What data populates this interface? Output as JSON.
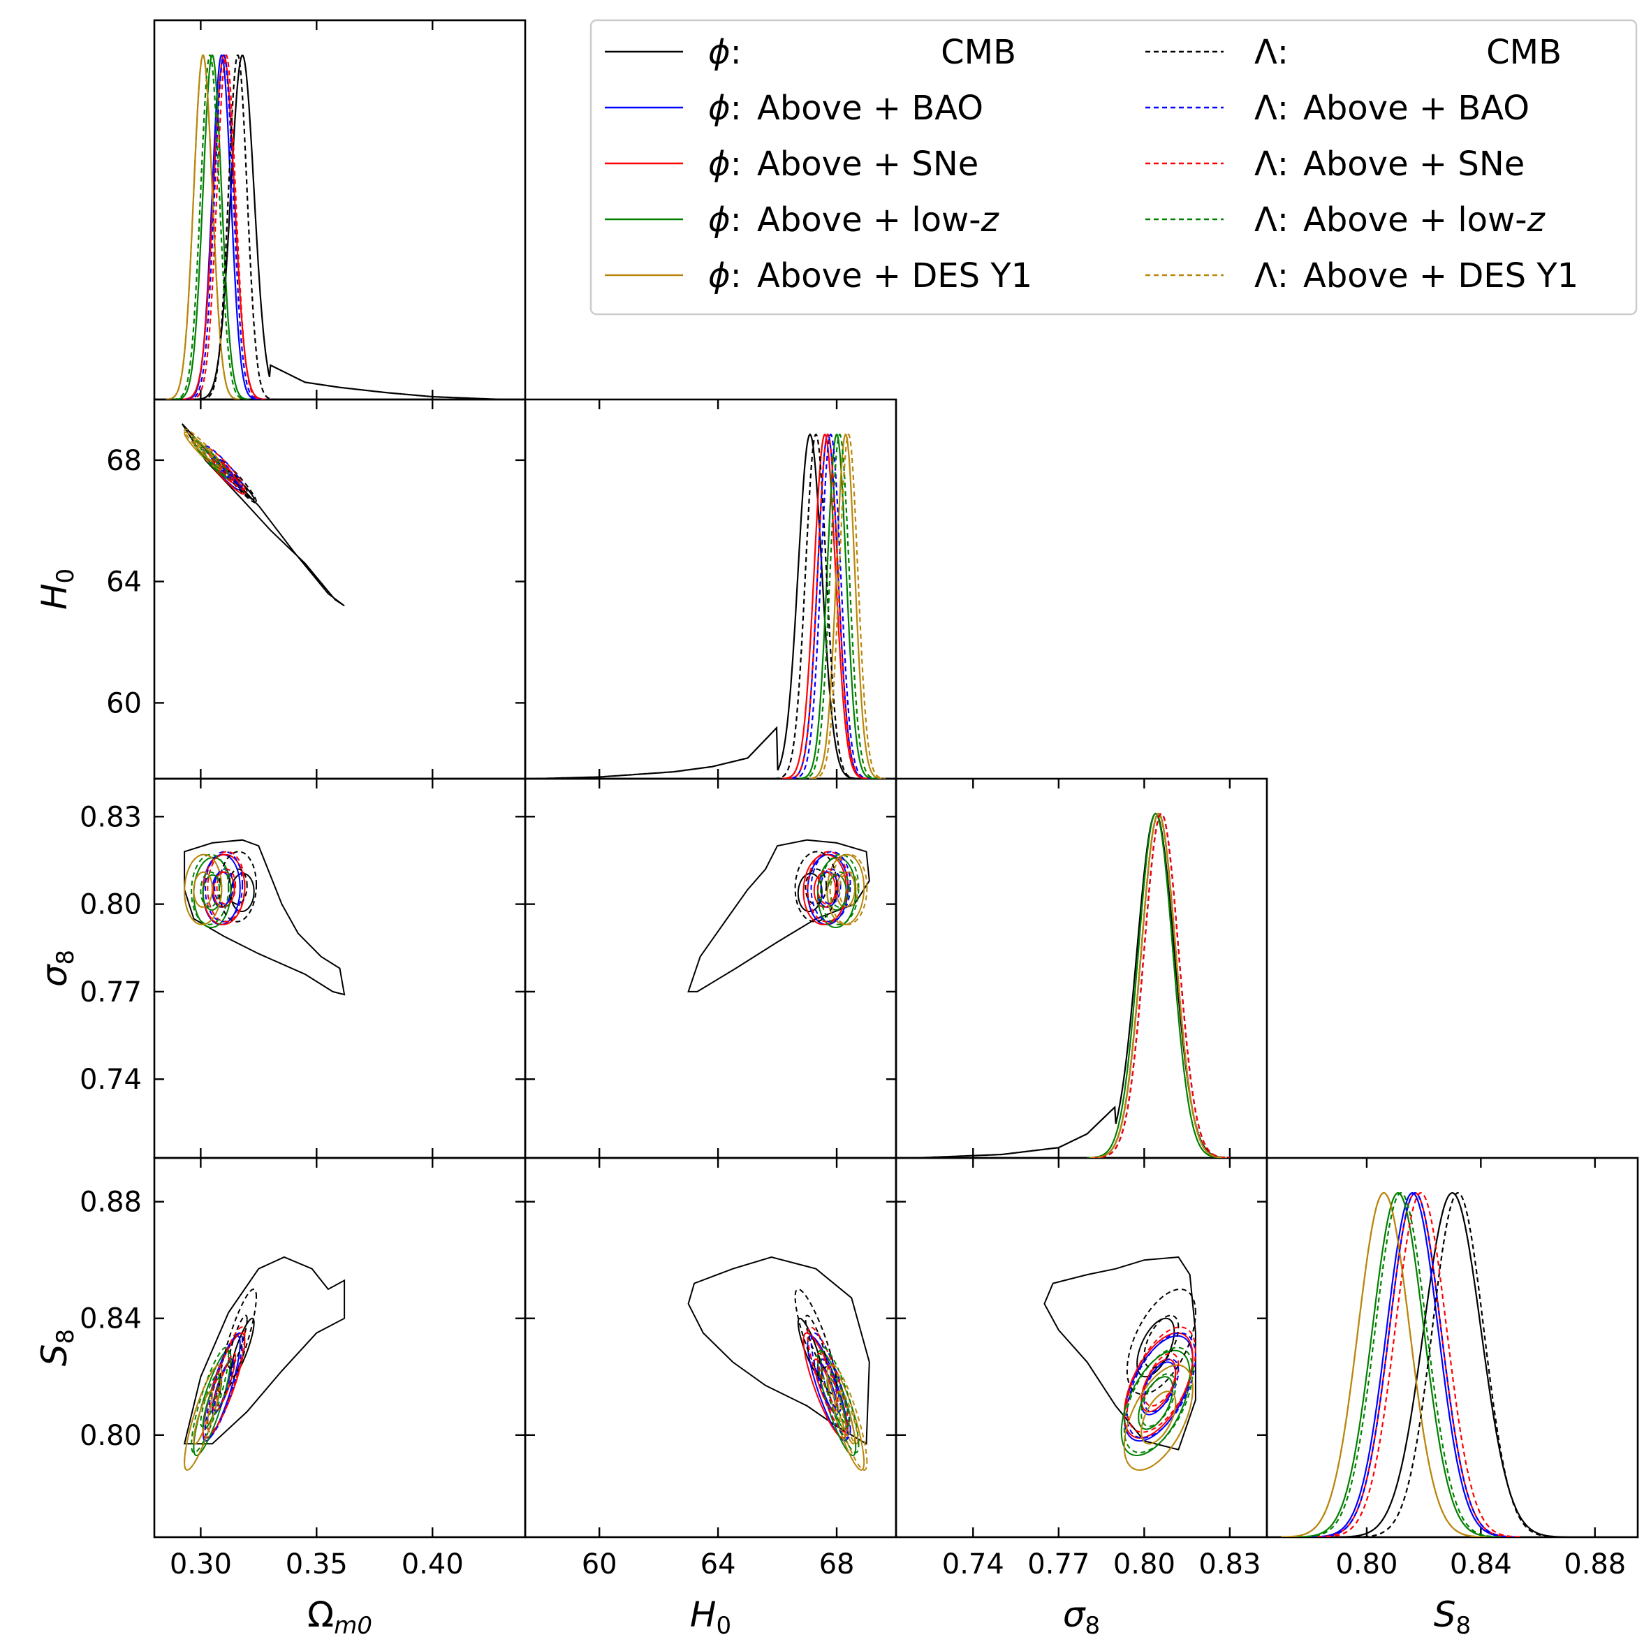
{
  "chart_data": {
    "type": "corner",
    "parameters": [
      {
        "key": "om",
        "label": "Ω",
        "sub": "m0",
        "range": [
          0.28,
          0.44
        ],
        "ticks": [
          0.3,
          0.35,
          0.4
        ],
        "tick_labels": [
          "0.30",
          "0.35",
          "0.40"
        ]
      },
      {
        "key": "h0",
        "label": "H",
        "sub": "0",
        "range": [
          57.5,
          70.0
        ],
        "ticks": [
          60,
          64,
          68
        ],
        "tick_labels": [
          "60",
          "64",
          "68"
        ]
      },
      {
        "key": "s8",
        "label": "σ",
        "sub": "8",
        "range": [
          0.713,
          0.843
        ],
        "ticks": [
          0.74,
          0.77,
          0.8,
          0.83
        ],
        "tick_labels": [
          "0.74",
          "0.77",
          "0.80",
          "0.83"
        ]
      },
      {
        "key": "S8",
        "label": "S",
        "sub": "8",
        "range": [
          0.765,
          0.895
        ],
        "ticks": [
          0.8,
          0.84,
          0.88
        ],
        "tick_labels": [
          "0.80",
          "0.84",
          "0.88"
        ]
      }
    ],
    "legend": {
      "placement": "top-right",
      "left_column": [
        {
          "prefix": "ϕ:",
          "text": "CMB",
          "right_align": true,
          "color": "#000000",
          "dashed": false
        },
        {
          "prefix": "ϕ:",
          "text": "Above + BAO",
          "color": "#0000ff",
          "dashed": false
        },
        {
          "prefix": "ϕ:",
          "text": "Above + SNe",
          "color": "#ff0000",
          "dashed": false
        },
        {
          "prefix": "ϕ:",
          "text": "Above + low-",
          "italic_suffix": "z",
          "color": "#008000",
          "dashed": false
        },
        {
          "prefix": "ϕ:",
          "text": "Above + DES Y1",
          "color": "#b8860b",
          "dashed": false
        }
      ],
      "right_column": [
        {
          "prefix": "Λ:",
          "text": "CMB",
          "right_align": true,
          "color": "#000000",
          "dashed": true
        },
        {
          "prefix": "Λ:",
          "text": "Above + BAO",
          "color": "#0000ff",
          "dashed": true
        },
        {
          "prefix": "Λ:",
          "text": "Above + SNe",
          "color": "#ff0000",
          "dashed": true
        },
        {
          "prefix": "Λ:",
          "text": "Above + low-",
          "italic_suffix": "z",
          "color": "#008000",
          "dashed": true
        },
        {
          "prefix": "Λ:",
          "text": "Above + DES Y1",
          "color": "#b8860b",
          "dashed": true
        }
      ]
    },
    "series": [
      {
        "model": "phi",
        "data": "CMB",
        "color": "#000000",
        "dashed": false,
        "mean": {
          "om": 0.318,
          "h0": 67.1,
          "s8": 0.804,
          "S8": 0.83
        },
        "sigma": {
          "om": 0.005,
          "h0": 0.4,
          "s8": 0.0065,
          "S8": 0.01
        },
        "corr": -0.7
      },
      {
        "model": "phi",
        "data": "Above + BAO",
        "color": "#0000ff",
        "dashed": false,
        "mean": {
          "om": 0.309,
          "h0": 67.7,
          "s8": 0.805,
          "S8": 0.816
        },
        "sigma": {
          "om": 0.004,
          "h0": 0.34,
          "s8": 0.006,
          "S8": 0.009
        },
        "corr": -0.7
      },
      {
        "model": "phi",
        "data": "Above + SNe",
        "color": "#ff0000",
        "dashed": false,
        "mean": {
          "om": 0.31,
          "h0": 67.6,
          "s8": 0.805,
          "S8": 0.817
        },
        "sigma": {
          "om": 0.0045,
          "h0": 0.36,
          "s8": 0.006,
          "S8": 0.009
        },
        "corr": -0.7
      },
      {
        "model": "phi",
        "data": "Above + low-z",
        "color": "#008000",
        "dashed": false,
        "mean": {
          "om": 0.305,
          "h0": 68.0,
          "s8": 0.804,
          "S8": 0.811
        },
        "sigma": {
          "om": 0.004,
          "h0": 0.32,
          "s8": 0.006,
          "S8": 0.009
        },
        "corr": -0.7
      },
      {
        "model": "phi",
        "data": "Above + DES Y1",
        "color": "#b8860b",
        "dashed": false,
        "mean": {
          "om": 0.301,
          "h0": 68.3,
          "s8": 0.805,
          "S8": 0.806
        },
        "sigma": {
          "om": 0.004,
          "h0": 0.31,
          "s8": 0.006,
          "S8": 0.009
        },
        "corr": -0.7
      },
      {
        "model": "lambda",
        "data": "CMB",
        "color": "#000000",
        "dashed": true,
        "mean": {
          "om": 0.316,
          "h0": 67.3,
          "s8": 0.806,
          "S8": 0.832
        },
        "sigma": {
          "om": 0.004,
          "h0": 0.35,
          "s8": 0.006,
          "S8": 0.009
        },
        "corr": -0.7
      },
      {
        "model": "lambda",
        "data": "Above + BAO",
        "color": "#0000ff",
        "dashed": true,
        "mean": {
          "om": 0.31,
          "h0": 67.8,
          "s8": 0.806,
          "S8": 0.817
        },
        "sigma": {
          "om": 0.004,
          "h0": 0.33,
          "s8": 0.006,
          "S8": 0.009
        },
        "corr": -0.7
      },
      {
        "model": "lambda",
        "data": "Above + SNe",
        "color": "#ff0000",
        "dashed": true,
        "mean": {
          "om": 0.311,
          "h0": 67.7,
          "s8": 0.806,
          "S8": 0.819
        },
        "sigma": {
          "om": 0.004,
          "h0": 0.34,
          "s8": 0.006,
          "S8": 0.009
        },
        "corr": -0.7
      },
      {
        "model": "lambda",
        "data": "Above + low-z",
        "color": "#008000",
        "dashed": true,
        "mean": {
          "om": 0.304,
          "h0": 68.1,
          "s8": 0.805,
          "S8": 0.812
        },
        "sigma": {
          "om": 0.004,
          "h0": 0.32,
          "s8": 0.006,
          "S8": 0.009
        },
        "corr": -0.7
      },
      {
        "model": "lambda",
        "data": "Above + DES Y1",
        "color": "#b8860b",
        "dashed": true,
        "mean": {
          "om": 0.301,
          "h0": 68.4,
          "s8": 0.805,
          "S8": 0.806
        },
        "sigma": {
          "om": 0.004,
          "h0": 0.31,
          "s8": 0.006,
          "S8": 0.009
        },
        "corr": -0.7
      }
    ],
    "phi_cmb_tail": {
      "om_h0_contour": [
        [
          0.292,
          69.2
        ],
        [
          0.31,
          67.7
        ],
        [
          0.325,
          66.5
        ],
        [
          0.34,
          65.0
        ],
        [
          0.355,
          63.6
        ],
        [
          0.362,
          63.2
        ],
        [
          0.358,
          63.4
        ],
        [
          0.345,
          64.6
        ],
        [
          0.33,
          65.7
        ],
        [
          0.318,
          66.7
        ],
        [
          0.302,
          68.0
        ],
        [
          0.292,
          69.2
        ]
      ],
      "om_s8_contour": [
        [
          0.293,
          0.818
        ],
        [
          0.305,
          0.821
        ],
        [
          0.318,
          0.822
        ],
        [
          0.325,
          0.82
        ],
        [
          0.33,
          0.81
        ],
        [
          0.335,
          0.8
        ],
        [
          0.342,
          0.79
        ],
        [
          0.352,
          0.782
        ],
        [
          0.36,
          0.778
        ],
        [
          0.362,
          0.769
        ],
        [
          0.357,
          0.77
        ],
        [
          0.345,
          0.776
        ],
        [
          0.325,
          0.783
        ],
        [
          0.31,
          0.789
        ],
        [
          0.297,
          0.795
        ],
        [
          0.293,
          0.805
        ],
        [
          0.293,
          0.818
        ]
      ],
      "h0_s8_contour": [
        [
          69.0,
          0.818
        ],
        [
          68.0,
          0.821
        ],
        [
          67.0,
          0.822
        ],
        [
          66.0,
          0.82
        ],
        [
          65.6,
          0.812
        ],
        [
          65.0,
          0.805
        ],
        [
          64.3,
          0.795
        ],
        [
          63.4,
          0.782
        ],
        [
          63.0,
          0.77
        ],
        [
          63.3,
          0.77
        ],
        [
          64.6,
          0.778
        ],
        [
          66.0,
          0.787
        ],
        [
          67.3,
          0.795
        ],
        [
          68.6,
          0.8
        ],
        [
          69.1,
          0.808
        ],
        [
          69.0,
          0.818
        ]
      ],
      "om_S8_contour": [
        [
          0.293,
          0.797
        ],
        [
          0.3,
          0.82
        ],
        [
          0.312,
          0.842
        ],
        [
          0.325,
          0.857
        ],
        [
          0.336,
          0.861
        ],
        [
          0.348,
          0.857
        ],
        [
          0.355,
          0.85
        ],
        [
          0.362,
          0.853
        ],
        [
          0.362,
          0.84
        ],
        [
          0.35,
          0.835
        ],
        [
          0.335,
          0.822
        ],
        [
          0.32,
          0.808
        ],
        [
          0.305,
          0.797
        ],
        [
          0.293,
          0.797
        ]
      ],
      "h0_S8_contour": [
        [
          69.0,
          0.797
        ],
        [
          68.0,
          0.803
        ],
        [
          67.0,
          0.81
        ],
        [
          65.6,
          0.817
        ],
        [
          64.5,
          0.825
        ],
        [
          63.5,
          0.835
        ],
        [
          63.0,
          0.845
        ],
        [
          63.2,
          0.852
        ],
        [
          64.5,
          0.857
        ],
        [
          65.8,
          0.861
        ],
        [
          67.3,
          0.857
        ],
        [
          68.5,
          0.847
        ],
        [
          69.1,
          0.825
        ],
        [
          69.0,
          0.797
        ]
      ],
      "s8_S8_contour": [
        [
          0.812,
          0.861
        ],
        [
          0.8,
          0.86
        ],
        [
          0.79,
          0.857
        ],
        [
          0.78,
          0.855
        ],
        [
          0.768,
          0.852
        ],
        [
          0.765,
          0.845
        ],
        [
          0.77,
          0.836
        ],
        [
          0.78,
          0.825
        ],
        [
          0.79,
          0.81
        ],
        [
          0.8,
          0.798
        ],
        [
          0.812,
          0.795
        ],
        [
          0.818,
          0.812
        ],
        [
          0.818,
          0.835
        ],
        [
          0.816,
          0.855
        ],
        [
          0.812,
          0.861
        ]
      ],
      "om_pdf_tail": [
        [
          0.33,
          0.1
        ],
        [
          0.345,
          0.05
        ],
        [
          0.36,
          0.035
        ],
        [
          0.38,
          0.02
        ],
        [
          0.4,
          0.008
        ],
        [
          0.43,
          0.0
        ]
      ],
      "h0_pdf_tail": [
        [
          66.0,
          0.15
        ],
        [
          65.0,
          0.06
        ],
        [
          63.8,
          0.035
        ],
        [
          62.5,
          0.02
        ],
        [
          60.0,
          0.005
        ],
        [
          57.8,
          0.0
        ]
      ],
      "s8_pdf_tail": [
        [
          0.79,
          0.15
        ],
        [
          0.78,
          0.07
        ],
        [
          0.77,
          0.03
        ],
        [
          0.75,
          0.01
        ],
        [
          0.72,
          0.0
        ]
      ]
    },
    "grid": false
  }
}
